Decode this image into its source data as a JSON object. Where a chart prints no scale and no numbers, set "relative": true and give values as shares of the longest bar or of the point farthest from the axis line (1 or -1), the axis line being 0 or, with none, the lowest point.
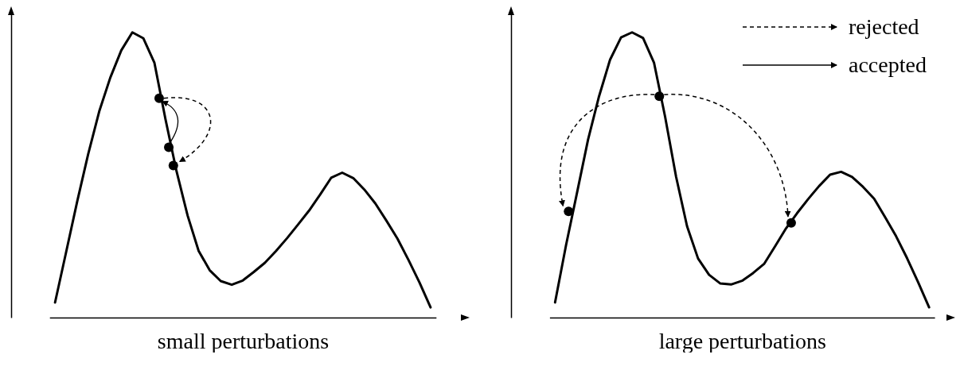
{
  "chart_data": [
    {
      "type": "line",
      "xlabel": "small perturbations",
      "relative": true,
      "categories": [
        null,
        null,
        null,
        null,
        null,
        null,
        null,
        null,
        null,
        null,
        null,
        null,
        null,
        null,
        null,
        null,
        null,
        null,
        null,
        null,
        null,
        null,
        null,
        null,
        null,
        null,
        null,
        null,
        null,
        null,
        null,
        null,
        null,
        null,
        null
      ],
      "series": [
        {
          "color": "#000000",
          "values": [
            0.053,
            0.229,
            0.406,
            0.573,
            0.723,
            0.841,
            0.937,
            1.0,
            0.979,
            0.893,
            0.695,
            0.513,
            0.358,
            0.234,
            0.166,
            0.128,
            0.115,
            0.13,
            0.16,
            0.192,
            0.233,
            0.278,
            0.326,
            0.375,
            0.431,
            0.49,
            0.508,
            0.489,
            0.449,
            0.4,
            0.34,
            0.277,
            0.202,
            0.123,
            0.036
          ]
        }
      ]
    },
    {
      "type": "line",
      "xlabel": "large perturbations",
      "relative": true,
      "annotations": [
        "rejected",
        "accepted"
      ],
      "categories": [
        null,
        null,
        null,
        null,
        null,
        null,
        null,
        null,
        null,
        null,
        null,
        null,
        null,
        null,
        null,
        null,
        null,
        null,
        null,
        null,
        null,
        null,
        null,
        null,
        null,
        null,
        null,
        null,
        null,
        null,
        null,
        null,
        null,
        null,
        null
      ],
      "series": [
        {
          "color": "#000000",
          "values": [
            0.053,
            0.254,
            0.438,
            0.624,
            0.776,
            0.904,
            0.982,
            1.0,
            0.98,
            0.893,
            0.705,
            0.494,
            0.32,
            0.207,
            0.15,
            0.12,
            0.116,
            0.129,
            0.156,
            0.188,
            0.25,
            0.313,
            0.366,
            0.415,
            0.461,
            0.501,
            0.511,
            0.493,
            0.458,
            0.417,
            0.352,
            0.285,
            0.208,
            0.124,
            0.036
          ]
        }
      ]
    }
  ]
}
